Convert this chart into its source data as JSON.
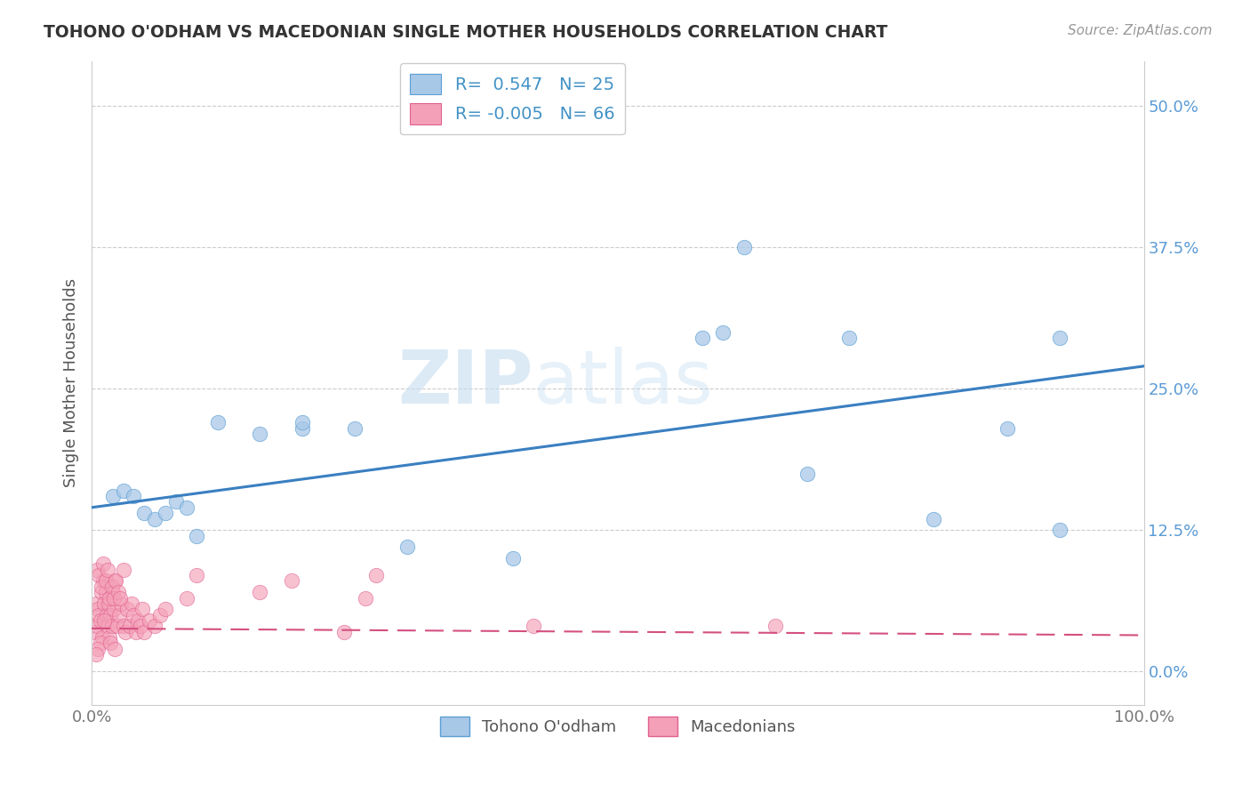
{
  "title": "TOHONO O'ODHAM VS MACEDONIAN SINGLE MOTHER HOUSEHOLDS CORRELATION CHART",
  "source": "Source: ZipAtlas.com",
  "ylabel": "Single Mother Households",
  "legend_label1": "Tohono O'odham",
  "legend_label2": "Macedonians",
  "r1": "0.547",
  "n1": "25",
  "r2": "-0.005",
  "n2": "66",
  "color_blue": "#a8c8e8",
  "color_pink": "#f4a0b8",
  "color_blue_dark": "#5a9fd4",
  "color_pink_dark": "#e06090",
  "line_blue": "#3a7fc1",
  "line_pink": "#d45080",
  "watermark_zip": "ZIP",
  "watermark_atlas": "atlas",
  "xlim": [
    0.0,
    1.0
  ],
  "ylim": [
    -0.03,
    0.54
  ],
  "blue_points_x": [
    0.02,
    0.03,
    0.04,
    0.05,
    0.06,
    0.07,
    0.08,
    0.09,
    0.1,
    0.12,
    0.16,
    0.2,
    0.4,
    0.58,
    0.62,
    0.68,
    0.72,
    0.8,
    0.87,
    0.92,
    0.92,
    0.2,
    0.25,
    0.3,
    0.6
  ],
  "blue_points_y": [
    0.155,
    0.16,
    0.155,
    0.14,
    0.135,
    0.14,
    0.15,
    0.145,
    0.12,
    0.22,
    0.21,
    0.215,
    0.1,
    0.295,
    0.375,
    0.175,
    0.295,
    0.135,
    0.215,
    0.295,
    0.125,
    0.22,
    0.215,
    0.11,
    0.3
  ],
  "pink_points_x": [
    0.003,
    0.004,
    0.005,
    0.006,
    0.007,
    0.008,
    0.009,
    0.01,
    0.011,
    0.012,
    0.013,
    0.014,
    0.015,
    0.016,
    0.017,
    0.018,
    0.019,
    0.02,
    0.021,
    0.022,
    0.024,
    0.026,
    0.028,
    0.03,
    0.032,
    0.034,
    0.036,
    0.038,
    0.04,
    0.042,
    0.044,
    0.046,
    0.048,
    0.05,
    0.055,
    0.06,
    0.065,
    0.07,
    0.005,
    0.007,
    0.009,
    0.011,
    0.013,
    0.015,
    0.017,
    0.019,
    0.021,
    0.023,
    0.025,
    0.027,
    0.012,
    0.008,
    0.006,
    0.004,
    0.018,
    0.022,
    0.03,
    0.24,
    0.42,
    0.65,
    0.27,
    0.19,
    0.1,
    0.09,
    0.16,
    0.26
  ],
  "pink_points_y": [
    0.035,
    0.06,
    0.04,
    0.055,
    0.05,
    0.045,
    0.07,
    0.03,
    0.08,
    0.06,
    0.07,
    0.05,
    0.04,
    0.06,
    0.03,
    0.05,
    0.04,
    0.07,
    0.055,
    0.08,
    0.04,
    0.05,
    0.06,
    0.04,
    0.035,
    0.055,
    0.04,
    0.06,
    0.05,
    0.035,
    0.045,
    0.04,
    0.055,
    0.035,
    0.045,
    0.04,
    0.05,
    0.055,
    0.09,
    0.085,
    0.075,
    0.095,
    0.08,
    0.09,
    0.065,
    0.075,
    0.065,
    0.08,
    0.07,
    0.065,
    0.045,
    0.025,
    0.02,
    0.015,
    0.025,
    0.02,
    0.09,
    0.035,
    0.04,
    0.04,
    0.085,
    0.08,
    0.085,
    0.065,
    0.07,
    0.065
  ],
  "blue_line_x": [
    0.0,
    1.0
  ],
  "blue_line_y": [
    0.145,
    0.27
  ],
  "pink_line_x": [
    0.0,
    1.0
  ],
  "pink_line_y": [
    0.038,
    0.032
  ]
}
